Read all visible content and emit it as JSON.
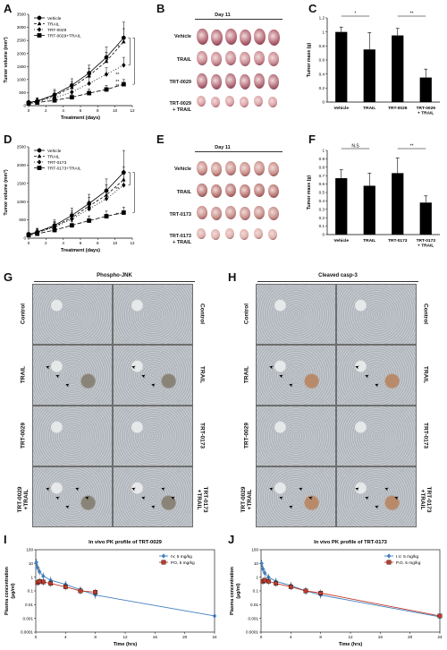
{
  "panels": {
    "A": "A",
    "B": "B",
    "C": "C",
    "D": "D",
    "E": "E",
    "F": "F",
    "G": "G",
    "H": "H",
    "I": "I",
    "J": "J"
  },
  "photos": {
    "B": {
      "day": "Day 11",
      "rows": [
        "Vehicle",
        "TRAIL",
        "TRT-0029",
        "TRT-0029\n+ TRAIL"
      ],
      "color_row": [
        "#b56a78",
        "#c98a92",
        "#b4707c",
        "#dca3a6"
      ]
    },
    "E": {
      "day": "Day 11",
      "rows": [
        "Vehicle",
        "TRAIL",
        "TRT-0173",
        "TRT-0173\n+ TRAIL"
      ],
      "color_row": [
        "#c99089",
        "#b97b76",
        "#c8908a",
        "#dfb2ab"
      ]
    }
  },
  "ihc": {
    "G": {
      "title": "Phospho-JNK",
      "left_labels": [
        "Control",
        "TRAIL",
        "TRT-0029",
        "TRT-0029\n+TRAIL"
      ],
      "right_labels": [
        "Control",
        "TRAIL",
        "TRT-0173",
        "TRT-0173\n+TRAIL"
      ]
    },
    "H": {
      "title": "Cleaved casp-3",
      "left_labels": [
        "Control",
        "TRAIL",
        "TRT-0029",
        "TRT-0029\n+TRAIL"
      ],
      "right_labels": [
        "Control",
        "TRAIL",
        "TRT-0173",
        "TRT-0173\n+TRAIL"
      ]
    }
  },
  "chart_data": [
    {
      "panel": "A",
      "type": "line",
      "xlabel": "Treatment (days)",
      "ylabel": "Tumor volume (mm³)",
      "xlim": [
        0,
        12
      ],
      "ylim": [
        0,
        3500
      ],
      "xticks": [
        0,
        2,
        4,
        6,
        8,
        10,
        12
      ],
      "yticks": [
        0,
        500,
        1000,
        1500,
        2000,
        2500,
        3000,
        3500
      ],
      "x": [
        0,
        1,
        3,
        5,
        7,
        9,
        11
      ],
      "series": [
        {
          "name": "Vehicle",
          "values": [
            120,
            180,
            420,
            780,
            1250,
            1850,
            2600
          ],
          "err": [
            80,
            120,
            200,
            250,
            300,
            400,
            600
          ],
          "marker": "circle",
          "dash": ""
        },
        {
          "name": "TRAIL",
          "values": [
            110,
            170,
            380,
            700,
            1150,
            1700,
            2450
          ],
          "err": [
            70,
            110,
            180,
            220,
            280,
            350,
            500
          ],
          "marker": "triangle",
          "dash": "3,2"
        },
        {
          "name": "TRT-0029",
          "values": [
            100,
            150,
            300,
            520,
            850,
            1200,
            1550
          ],
          "err": [
            60,
            90,
            150,
            180,
            220,
            250,
            300
          ],
          "marker": "diamond",
          "dash": "1,2"
        },
        {
          "name": "TRT-0029+TRAIL",
          "values": [
            90,
            120,
            200,
            320,
            480,
            620,
            820
          ],
          "err": [
            50,
            70,
            100,
            120,
            150,
            160,
            180
          ],
          "marker": "square",
          "dash": "5,2"
        }
      ],
      "annotations": [
        "*",
        "**",
        "**",
        "**"
      ]
    },
    {
      "panel": "C",
      "type": "bar",
      "ylabel": "Tumor mass (g)",
      "categories": [
        "Vehicle",
        "TRAIL",
        "TRT-0029",
        "TRT-0029\n+ TRAIL"
      ],
      "values": [
        1.0,
        0.75,
        0.95,
        0.35
      ],
      "err": [
        0.07,
        0.24,
        0.1,
        0.12
      ],
      "ylim": [
        0,
        1.2
      ],
      "yticks": [
        0,
        0.2,
        0.4,
        0.6,
        0.8,
        1.0,
        1.2
      ],
      "sig": [
        {
          "label": "*",
          "from": 0,
          "to": 1
        },
        {
          "label": "**",
          "from": 2,
          "to": 3
        }
      ]
    },
    {
      "panel": "D",
      "type": "line",
      "xlabel": "Treatment (days)",
      "ylabel": "Tumor volume (mm³)",
      "xlim": [
        0,
        12
      ],
      "ylim": [
        0,
        2500
      ],
      "xticks": [
        0,
        2,
        4,
        6,
        8,
        10,
        12
      ],
      "yticks": [
        0,
        500,
        1000,
        1500,
        2000,
        2500
      ],
      "x": [
        0,
        1,
        3,
        5,
        7,
        9,
        11
      ],
      "series": [
        {
          "name": "Vehicle",
          "values": [
            100,
            170,
            350,
            620,
            950,
            1300,
            1800
          ],
          "err": [
            60,
            100,
            150,
            200,
            250,
            320,
            600
          ],
          "marker": "circle",
          "dash": ""
        },
        {
          "name": "TRAIL",
          "values": [
            95,
            160,
            320,
            560,
            880,
            1180,
            1600
          ],
          "err": [
            55,
            90,
            140,
            180,
            230,
            280,
            350
          ],
          "marker": "triangle",
          "dash": "3,2"
        },
        {
          "name": "TRT-0173",
          "values": [
            90,
            150,
            300,
            520,
            800,
            1080,
            1450
          ],
          "err": [
            50,
            80,
            130,
            170,
            210,
            250,
            300
          ],
          "marker": "diamond",
          "dash": "1,2"
        },
        {
          "name": "TRT-0173+TRAIL",
          "values": [
            85,
            120,
            220,
            350,
            480,
            600,
            700
          ],
          "err": [
            40,
            60,
            90,
            110,
            130,
            140,
            150
          ],
          "marker": "square",
          "dash": "5,2"
        }
      ],
      "annotations": [
        "**",
        "**"
      ]
    },
    {
      "panel": "F",
      "type": "bar",
      "ylabel": "Tumor mass (g)",
      "categories": [
        "Vehicle",
        "TRAIL",
        "TRT-0173",
        "TRT-0173\n+ TRAIL"
      ],
      "values": [
        0.67,
        0.58,
        0.73,
        0.38
      ],
      "err": [
        0.1,
        0.15,
        0.18,
        0.08
      ],
      "ylim": [
        0,
        1.0
      ],
      "yticks": [
        0,
        0.1,
        0.2,
        0.3,
        0.4,
        0.5,
        0.6,
        0.7,
        0.8,
        0.9,
        1.0
      ],
      "sig": [
        {
          "label": "N.S",
          "from": 0,
          "to": 1
        },
        {
          "label": "**",
          "from": 2,
          "to": 3
        }
      ]
    },
    {
      "panel": "I",
      "type": "line",
      "title": "In vivo PK profile of TRT-0029",
      "xlabel": "Time (hrs)",
      "ylabel": "Plasma concentration (μg/ml)",
      "xlim": [
        0,
        24
      ],
      "ylim_log": [
        0.0001,
        100
      ],
      "log_y": true,
      "xticks": [
        0,
        4,
        8,
        12,
        16,
        20,
        24
      ],
      "yticks": [
        "0.0001",
        "0.001",
        "0.01",
        "0.1",
        "1",
        "10",
        "100"
      ],
      "series": [
        {
          "name": "IV, 5 mg/kg",
          "color": "#3f7fbf",
          "marker": "diamond",
          "x": [
            0.08,
            0.25,
            0.5,
            1,
            2,
            4,
            6,
            8,
            24
          ],
          "y": [
            12,
            5,
            2.5,
            1.2,
            0.6,
            0.3,
            0.12,
            0.05,
            0.0015
          ]
        },
        {
          "name": "PO, 5 mg/kg",
          "color": "#c0392b",
          "marker": "square",
          "x": [
            0.25,
            0.5,
            1,
            2,
            4,
            6,
            8
          ],
          "y": [
            0.4,
            0.5,
            0.45,
            0.35,
            0.2,
            0.1,
            0.08
          ]
        }
      ]
    },
    {
      "panel": "J",
      "type": "line",
      "title": "In vivo PK profile of TRT-0173",
      "xlabel": "Time (hrs)",
      "ylabel": "Plasma concentration (μg/ml)",
      "xlim": [
        0,
        24
      ],
      "ylim_log": [
        0.0001,
        100
      ],
      "log_y": true,
      "xticks": [
        0,
        4,
        8,
        12,
        16,
        20,
        24
      ],
      "yticks": [
        "0.0001",
        "0.001",
        "0.01",
        "0.1",
        "1",
        "10",
        "100"
      ],
      "series": [
        {
          "name": "I.V.   5 mg/kg",
          "color": "#3f7fbf",
          "marker": "diamond",
          "x": [
            0.08,
            0.25,
            0.5,
            1,
            2,
            4,
            6,
            8,
            24
          ],
          "y": [
            10,
            4,
            2,
            1,
            0.5,
            0.25,
            0.1,
            0.05,
            0.0013
          ]
        },
        {
          "name": "P.O.   5 mg/kg",
          "color": "#c0392b",
          "marker": "square",
          "x": [
            0.25,
            0.5,
            1,
            2,
            4,
            6,
            8,
            24
          ],
          "y": [
            0.5,
            0.6,
            0.5,
            0.35,
            0.2,
            0.1,
            0.07,
            0.0015
          ]
        }
      ]
    }
  ]
}
